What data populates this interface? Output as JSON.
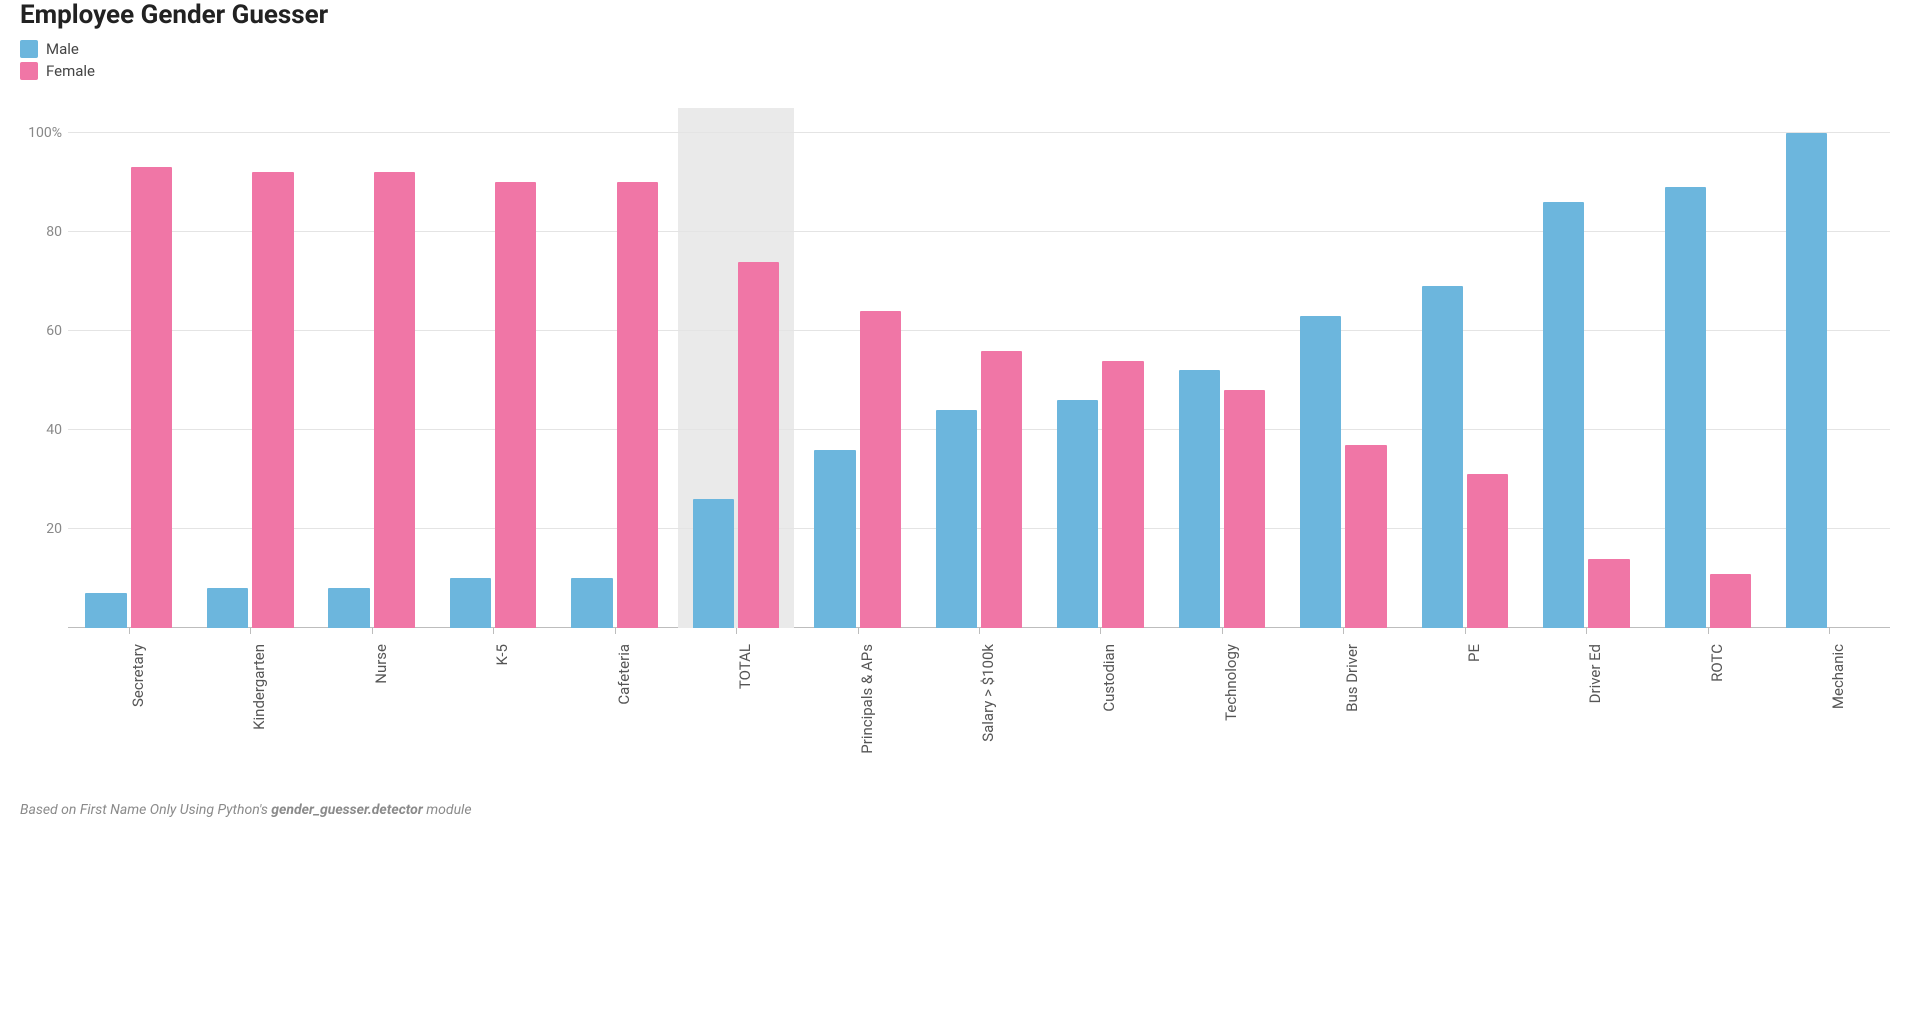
{
  "chart": {
    "type": "grouped-bar",
    "title": "Employee Gender Guesser",
    "legend": [
      {
        "label": "Male",
        "color": "#6cb6dd"
      },
      {
        "label": "Female",
        "color": "#f076a6"
      }
    ],
    "y": {
      "min": 0,
      "max": 105,
      "ticks": [
        {
          "v": 20,
          "label": "20"
        },
        {
          "v": 40,
          "label": "40"
        },
        {
          "v": 60,
          "label": "60"
        },
        {
          "v": 80,
          "label": "80"
        },
        {
          "v": 100,
          "label": "100%"
        }
      ],
      "grid_color": "#e4e4e4",
      "baseline_color": "#bdbdbd"
    },
    "series_colors": {
      "male": "#6cb6dd",
      "female": "#f076a6"
    },
    "highlight_bg": "#eaeaea",
    "categories": [
      {
        "label": "Secretary",
        "male": 7,
        "female": 93,
        "highlight": false
      },
      {
        "label": "Kindergarten",
        "male": 8,
        "female": 92,
        "highlight": false
      },
      {
        "label": "Nurse",
        "male": 8,
        "female": 92,
        "highlight": false
      },
      {
        "label": "K-5",
        "male": 10,
        "female": 90,
        "highlight": false
      },
      {
        "label": "Cafeteria",
        "male": 10,
        "female": 90,
        "highlight": false
      },
      {
        "label": "TOTAL",
        "male": 26,
        "female": 74,
        "highlight": true
      },
      {
        "label": "Principals & APs",
        "male": 36,
        "female": 64,
        "highlight": false
      },
      {
        "label": "Salary > $100k",
        "male": 44,
        "female": 56,
        "highlight": false
      },
      {
        "label": "Custodian",
        "male": 46,
        "female": 54,
        "highlight": false
      },
      {
        "label": "Technology",
        "male": 52,
        "female": 48,
        "highlight": false
      },
      {
        "label": "Bus Driver",
        "male": 63,
        "female": 37,
        "highlight": false
      },
      {
        "label": "PE",
        "male": 69,
        "female": 31,
        "highlight": false
      },
      {
        "label": "Driver Ed",
        "male": 86,
        "female": 14,
        "highlight": false
      },
      {
        "label": "ROTC",
        "male": 89,
        "female": 11,
        "highlight": false
      },
      {
        "label": "Mechanic",
        "male": 100,
        "female": 0,
        "highlight": false
      }
    ],
    "footnote_prefix": "Based on First Name Only Using Python's ",
    "footnote_module": "gender_guesser.detector",
    "footnote_suffix": " module",
    "background_color": "#ffffff",
    "label_fontsize": 15,
    "title_fontsize": 26
  }
}
